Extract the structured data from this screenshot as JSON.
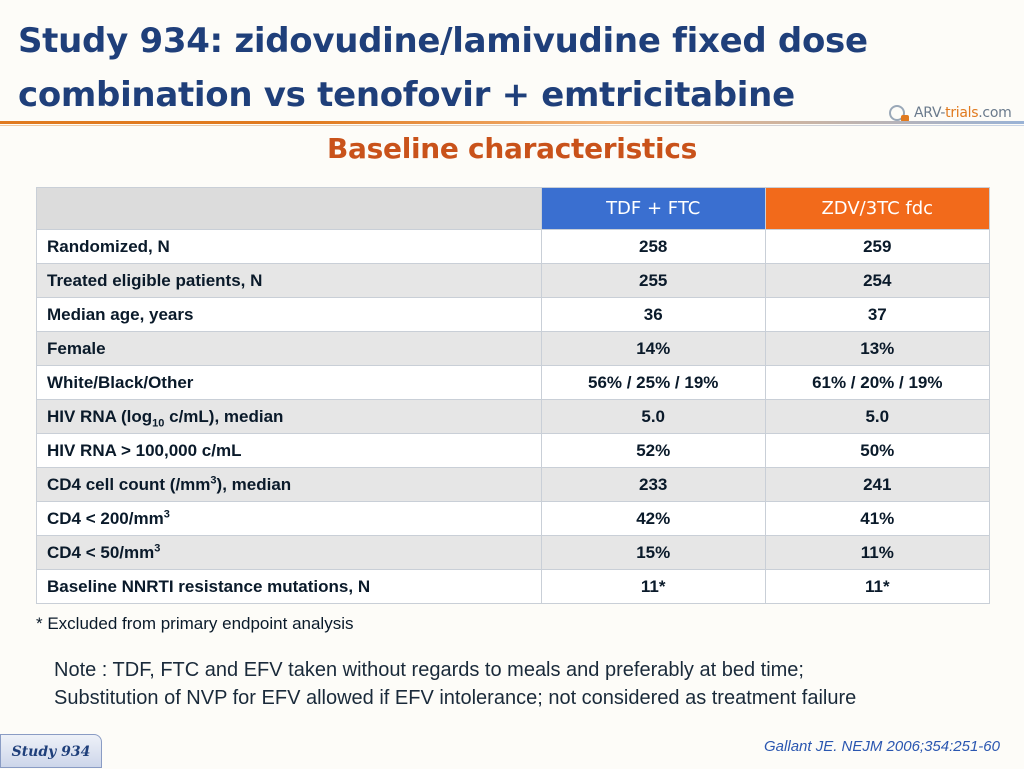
{
  "header": {
    "title_line1": "Study 934: zidovudine/lamivudine fixed dose",
    "title_line2": "combination vs tenofovir + emtricitabine",
    "logo_text": "ARV-",
    "logo_text_accent": "trials",
    "logo_text_suffix": ".com",
    "subtitle": "Baseline characteristics"
  },
  "table": {
    "columns": [
      "",
      "TDF + FTC",
      "ZDV/3TC fdc"
    ],
    "rows": [
      {
        "label": "Randomized, N",
        "a": "258",
        "b": "259"
      },
      {
        "label": "Treated eligible patients, N",
        "a": "255",
        "b": "254"
      },
      {
        "label": "Median age, years",
        "a": "36",
        "b": "37"
      },
      {
        "label": "Female",
        "a": "14%",
        "b": "13%"
      },
      {
        "label": "White/Black/Other",
        "a": "56% / 25% / 19%",
        "b": "61% / 20% / 19%"
      },
      {
        "label_pre": "HIV RNA (log",
        "label_sub": "10",
        "label_post": " c/mL), median",
        "a": "5.0",
        "b": "5.0"
      },
      {
        "label": "HIV RNA > 100,000 c/mL",
        "a": "52%",
        "b": "50%"
      },
      {
        "label_pre": "CD4 cell count (/mm",
        "label_sup": "3",
        "label_post": "), median",
        "a": "233",
        "b": "241"
      },
      {
        "label_pre": "CD4 < 200/mm",
        "label_sup": "3",
        "a": "42%",
        "b": "41%"
      },
      {
        "label_pre": "CD4 < 50/mm",
        "label_sup": "3",
        "a": "15%",
        "b": "11%"
      },
      {
        "label": "Baseline NNRTI resistance mutations, N",
        "a": "11*",
        "b": "11*"
      }
    ]
  },
  "footnote": "* Excluded from primary endpoint analysis",
  "note_line1": "Note : TDF, FTC and EFV taken without regards to meals and preferably at bed time;",
  "note_line2": "Substitution of NVP for EFV allowed if EFV intolerance; not considered as treatment failure",
  "citation": "Gallant JE. NEJM 2006;354:251-60",
  "study_tag": "Study 934",
  "colors": {
    "title": "#1f3f7a",
    "subtitle": "#c9521a",
    "col_tdf": "#3a6fd0",
    "col_zdv": "#f26a1b",
    "citation": "#2a56b0"
  }
}
